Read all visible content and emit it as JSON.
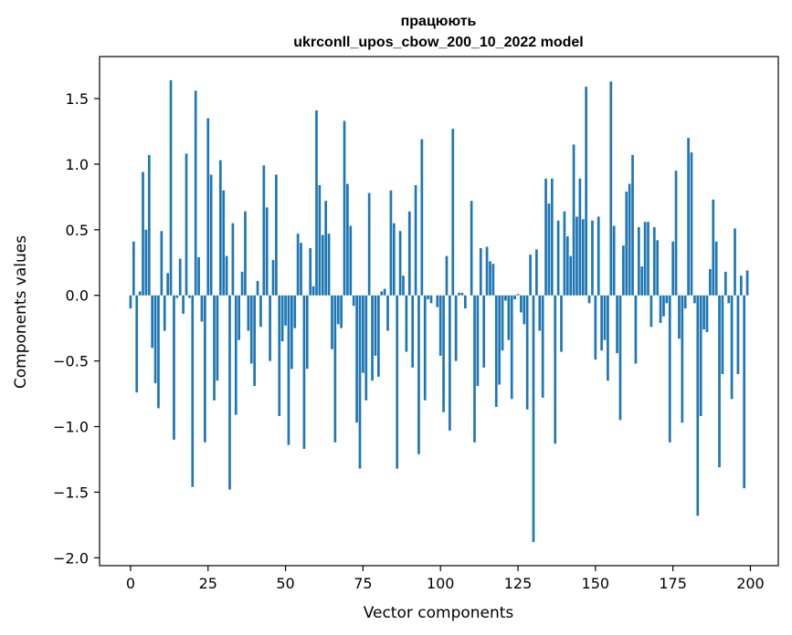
{
  "chart_data": {
    "type": "bar",
    "title": "працюють",
    "subtitle": "ukrconll_upos_cbow_200_10_2022 model",
    "xlabel": "Vector components",
    "ylabel": "Components values",
    "xlim": [
      -10,
      209
    ],
    "ylim": [
      -2.06,
      1.82
    ],
    "xticks": [
      0,
      25,
      50,
      75,
      100,
      125,
      150,
      175,
      200
    ],
    "yticks": [
      -2.0,
      -1.5,
      -1.0,
      -0.5,
      0.0,
      0.5,
      1.0,
      1.5
    ],
    "ytick_labels": [
      "−2.0",
      "−1.5",
      "−1.0",
      "−0.5",
      "0.0",
      "0.5",
      "1.0",
      "1.5"
    ],
    "bar_color": "#1f77b4",
    "grid": false,
    "values": [
      -0.1,
      0.41,
      -0.74,
      0.03,
      0.94,
      0.5,
      1.07,
      -0.4,
      -0.67,
      -0.86,
      0.49,
      -0.27,
      0.17,
      1.64,
      -1.1,
      -0.02,
      0.28,
      -0.14,
      1.08,
      -0.02,
      -1.46,
      1.56,
      0.29,
      -0.2,
      -1.12,
      1.35,
      0.92,
      -0.8,
      -0.65,
      1.03,
      0.8,
      0.3,
      -1.48,
      0.55,
      -0.91,
      -0.34,
      0.18,
      0.64,
      -0.27,
      -0.52,
      -0.69,
      0.11,
      -0.24,
      0.99,
      0.67,
      -0.5,
      0.27,
      0.92,
      -0.92,
      -0.35,
      -0.23,
      -1.14,
      -0.56,
      -0.25,
      0.47,
      0.4,
      -1.17,
      -0.56,
      0.36,
      0.07,
      1.41,
      0.84,
      0.46,
      0.72,
      0.47,
      -0.41,
      -1.12,
      -0.22,
      -0.25,
      1.33,
      0.85,
      0.53,
      -0.08,
      -0.97,
      -1.32,
      -0.59,
      -0.8,
      0.78,
      -0.65,
      -0.46,
      -0.62,
      0.03,
      0.05,
      -0.27,
      0.8,
      0.55,
      -1.32,
      0.49,
      0.15,
      -0.43,
      0.64,
      -0.55,
      0.84,
      -1.21,
      1.19,
      -0.8,
      -0.03,
      -0.06,
      0.0,
      -0.09,
      -0.46,
      -0.89,
      0.3,
      -1.03,
      1.27,
      -0.5,
      0.02,
      0.02,
      -0.1,
      0.0,
      0.72,
      -1.12,
      -0.69,
      0.36,
      -0.55,
      0.37,
      0.26,
      0.24,
      -0.85,
      -0.68,
      -0.42,
      -0.04,
      -0.34,
      -0.79,
      -0.03,
      0.01,
      -0.13,
      -0.22,
      -0.87,
      0.31,
      -1.88,
      0.35,
      -0.27,
      -0.78,
      0.89,
      0.7,
      0.89,
      -1.13,
      0.57,
      -0.43,
      0.64,
      0.45,
      0.3,
      1.15,
      0.6,
      0.89,
      0.58,
      1.59,
      -0.06,
      0.57,
      -0.49,
      0.6,
      -0.42,
      -0.34,
      -0.65,
      1.63,
      0.53,
      -0.44,
      -0.95,
      0.38,
      0.79,
      0.85,
      1.07,
      -0.52,
      0.52,
      0.22,
      0.56,
      0.56,
      -0.24,
      0.52,
      0.42,
      -0.21,
      -0.16,
      -0.06,
      -1.12,
      0.41,
      0.95,
      -0.33,
      -0.97,
      -0.1,
      1.2,
      1.09,
      -0.06,
      -1.68,
      -0.92,
      -0.26,
      -0.28,
      0.2,
      0.73,
      0.41,
      -1.31,
      -0.6,
      0.18,
      -0.06,
      -0.79,
      0.51,
      -0.6,
      0.15,
      -1.47,
      0.19
    ]
  }
}
